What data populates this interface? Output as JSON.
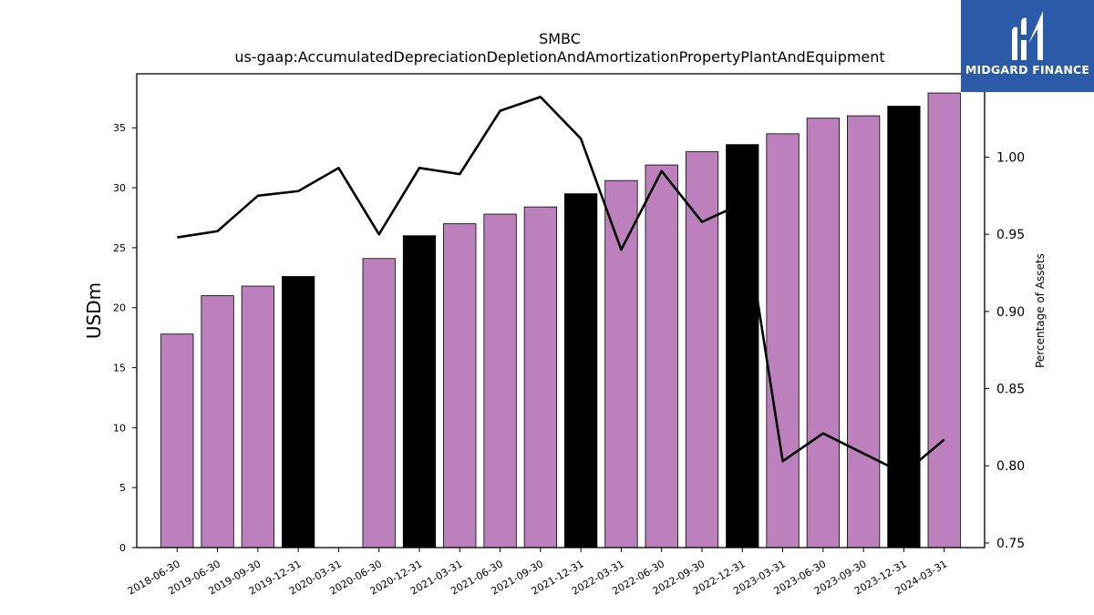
{
  "chart_data": {
    "type": "bar",
    "title": "SMBC",
    "subtitle": "us-gaap:AccumulatedDepreciationDepletionAndAmortizationPropertyPlantAndEquipment",
    "ylabel": "USDm",
    "y2label": "Percentage of Assets",
    "ylim": [
      0,
      39.5
    ],
    "y2lim": [
      0.747,
      1.054
    ],
    "yticks": [
      0,
      5,
      10,
      15,
      20,
      25,
      30,
      35
    ],
    "y2ticks": [
      "0.75",
      "0.80",
      "0.85",
      "0.90",
      "0.95",
      "1.00"
    ],
    "grid": false,
    "categories": [
      "2018-06-30",
      "2019-06-30",
      "2019-09-30",
      "2019-12-31",
      "2020-03-31",
      "2020-06-30",
      "2020-12-31",
      "2021-03-31",
      "2021-06-30",
      "2021-09-30",
      "2021-12-31",
      "2022-03-31",
      "2022-06-30",
      "2022-09-30",
      "2022-12-31",
      "2023-03-31",
      "2023-06-30",
      "2023-09-30",
      "2023-12-31",
      "2024-03-31"
    ],
    "series": [
      {
        "values": [
          17.8,
          21.0,
          21.8,
          22.6,
          0,
          24.1,
          26.0,
          27.0,
          27.8,
          28.4,
          29.5,
          30.6,
          31.9,
          33.0,
          33.6,
          34.5,
          35.8,
          36.0,
          36.8,
          37.9
        ],
        "colors": [
          "#bc80bd",
          "#bc80bd",
          "#bc80bd",
          "#000000",
          "#bc80bd",
          "#bc80bd",
          "#000000",
          "#bc80bd",
          "#bc80bd",
          "#bc80bd",
          "#000000",
          "#bc80bd",
          "#bc80bd",
          "#bc80bd",
          "#000000",
          "#bc80bd",
          "#bc80bd",
          "#bc80bd",
          "#000000",
          "#bc80bd"
        ]
      },
      {
        "type": "line",
        "axis": "right",
        "color": "#000000",
        "values": [
          0.948,
          0.952,
          0.975,
          0.978,
          0.993,
          0.95,
          0.993,
          0.989,
          1.03,
          1.039,
          1.012,
          0.94,
          0.991,
          0.958,
          0.97,
          0.803,
          0.821,
          0.808,
          0.795,
          0.817
        ]
      }
    ]
  },
  "logo": {
    "text": "MIDGARD FINANCE",
    "color": "#2b5aa8"
  }
}
